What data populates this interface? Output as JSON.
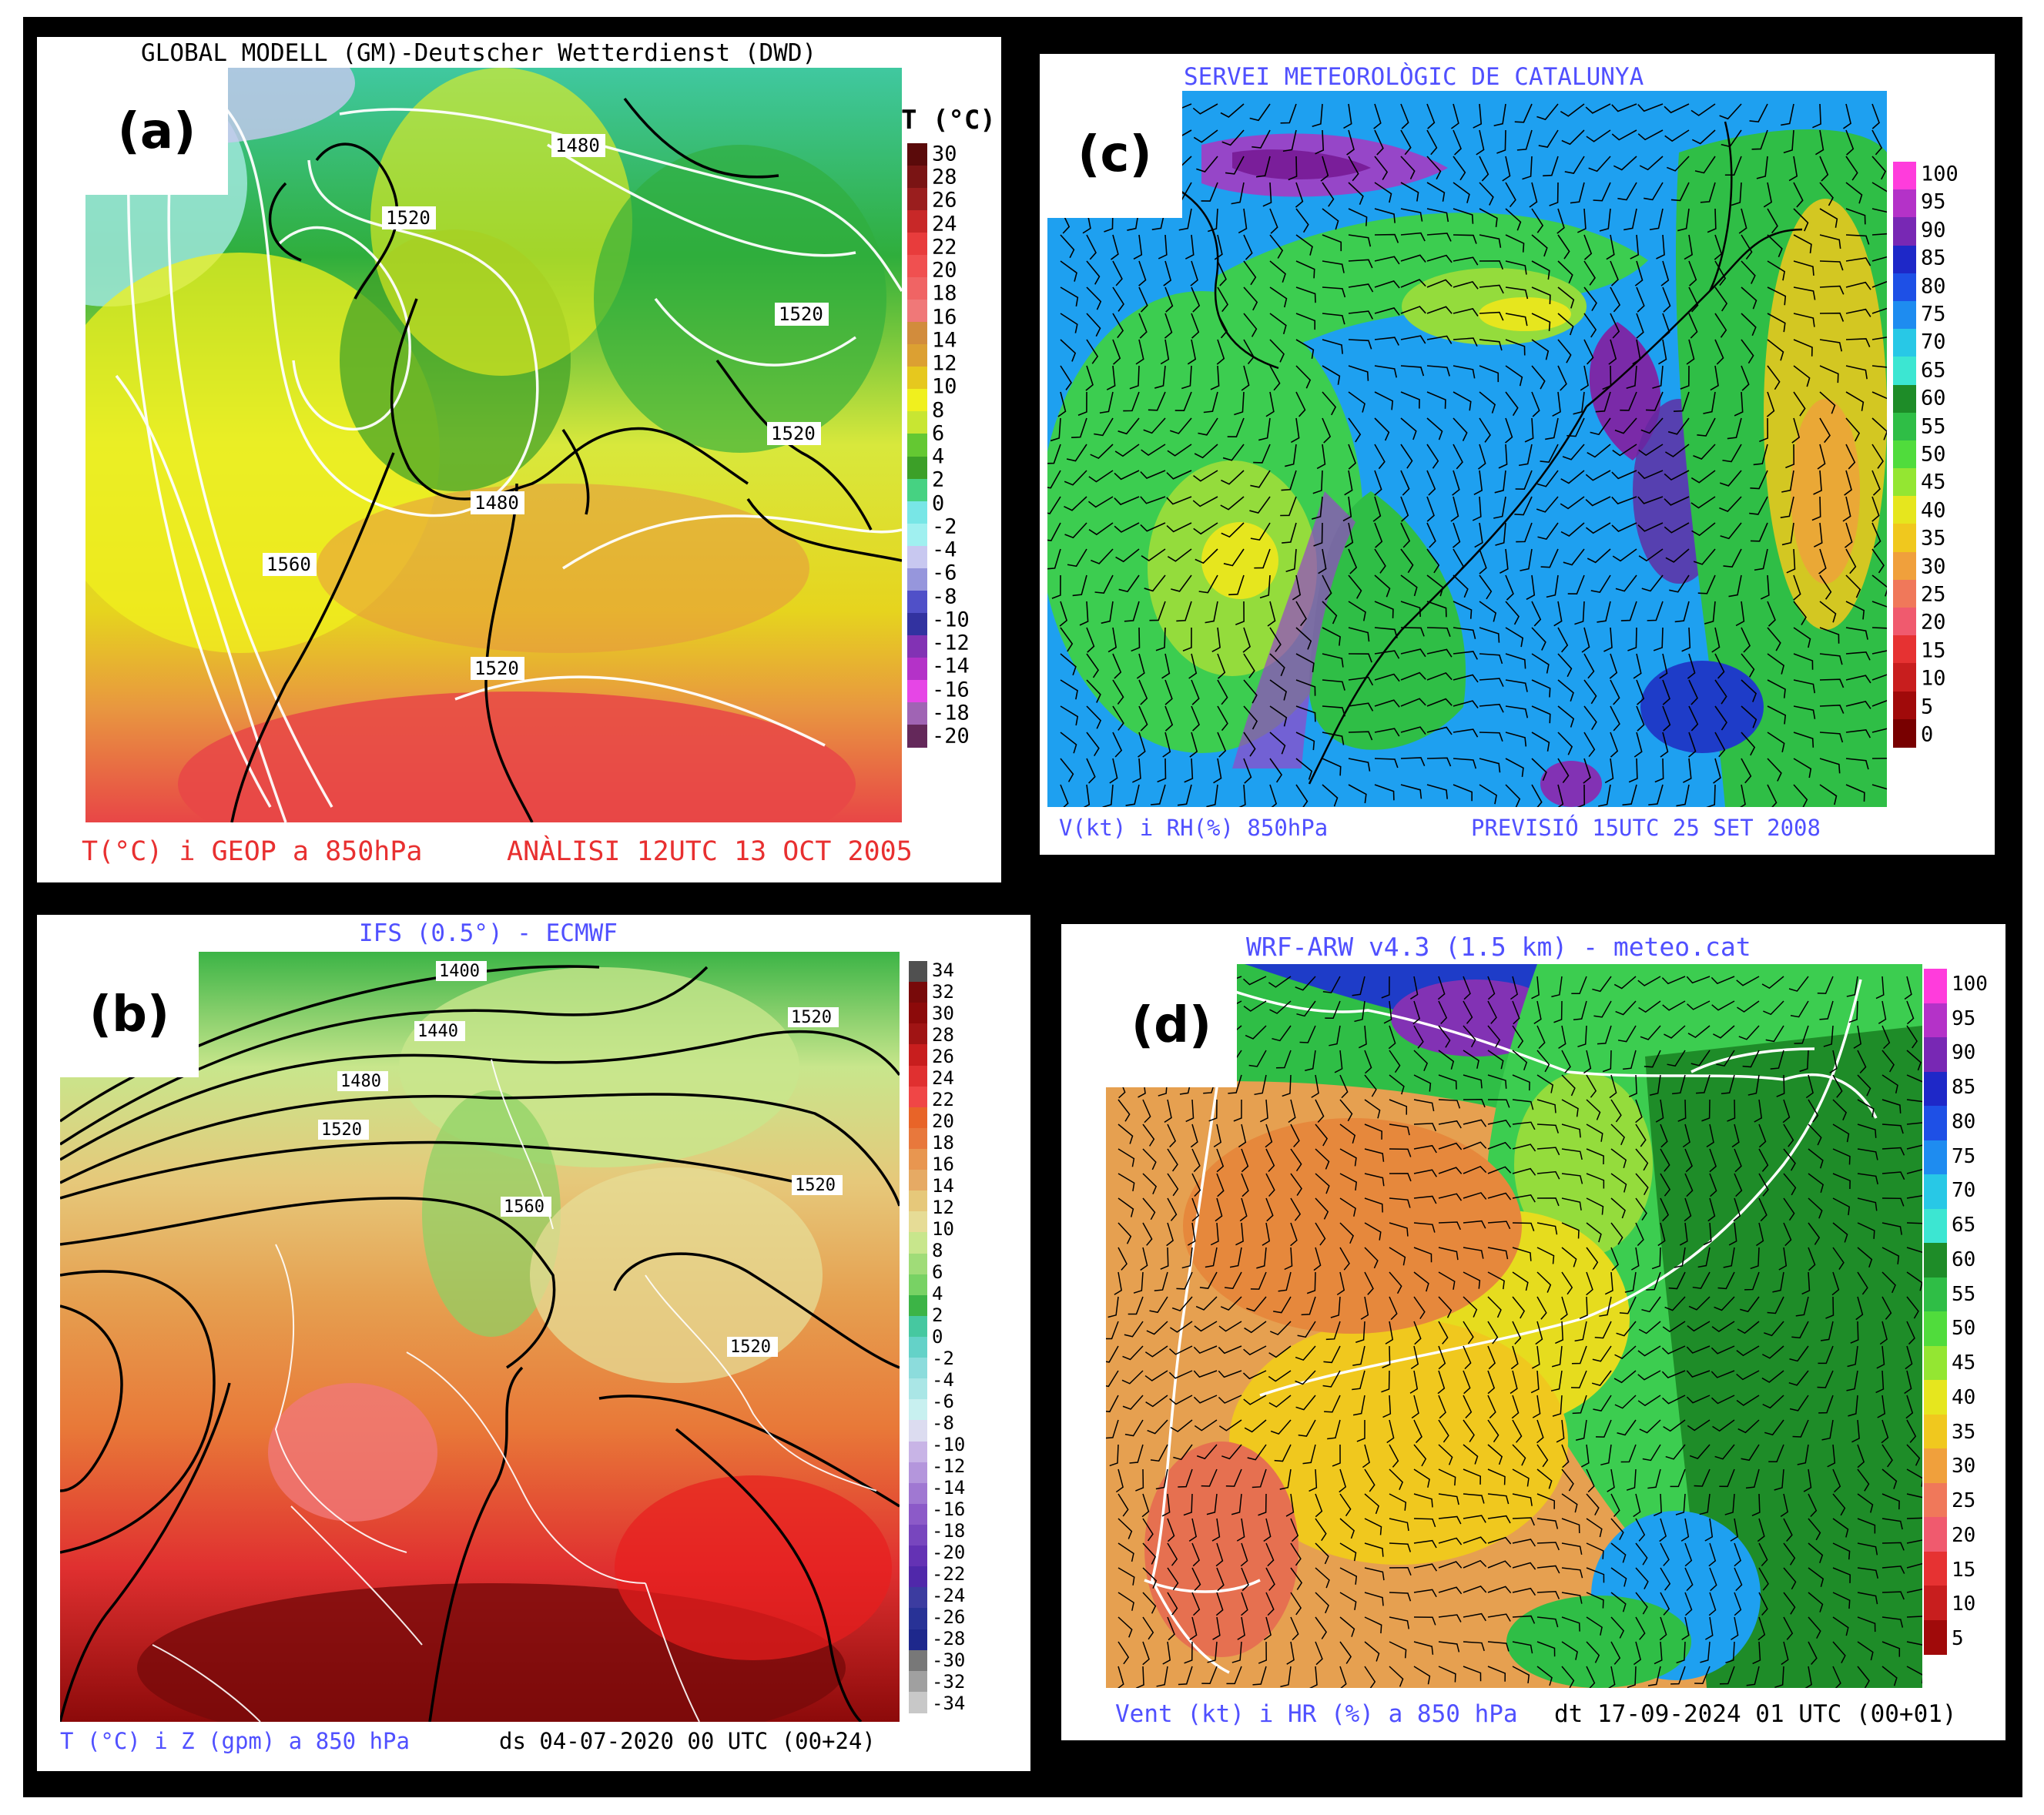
{
  "panels": {
    "a": {
      "label": "(a)",
      "title": "GLOBAL MODELL (GM)-Deutscher Wetterdienst (DWD)",
      "footer_left": "T(°C) i GEOP a 850hPa",
      "footer_right": "ANÀLISI 12UTC 13 OCT 2005",
      "colorbar_title": "T (°C)",
      "colorbar_ticks": [
        "30",
        "28",
        "26",
        "24",
        "22",
        "20",
        "18",
        "16",
        "14",
        "12",
        "10",
        "8",
        "6",
        "4",
        "2",
        "0",
        "-2",
        "-4",
        "-6",
        "-8",
        "-10",
        "-12",
        "-14",
        "-16",
        "-18",
        "-20"
      ],
      "colorbar_colors": [
        "#5a0a0a",
        "#7a1414",
        "#9a1e1e",
        "#c82828",
        "#e83c3c",
        "#f05050",
        "#f06464",
        "#f07878",
        "#d28c3c",
        "#dca032",
        "#e6c81e",
        "#f0f01e",
        "#c8e632",
        "#64c832",
        "#3ca028",
        "#46d282",
        "#78e6e6",
        "#a0f0f0",
        "#c8c8f0",
        "#9696dc",
        "#5050c8",
        "#3232a0",
        "#8232b4",
        "#b432c8",
        "#e646e6",
        "#a064b4",
        "#64285a"
      ],
      "contour_labels": [
        "1480",
        "1520",
        "1520",
        "1520",
        "1480",
        "1560",
        "1520"
      ]
    },
    "b": {
      "label": "(b)",
      "title": "IFS (0.5°) - ECMWF",
      "footer_left": "T (°C) i Z (gpm) a 850 hPa",
      "footer_right": "ds 04-07-2020 00 UTC (00+24)",
      "colorbar_ticks": [
        "34",
        "32",
        "30",
        "28",
        "26",
        "24",
        "22",
        "20",
        "18",
        "16",
        "14",
        "12",
        "10",
        "8",
        "6",
        "4",
        "2",
        "0",
        "-2",
        "-4",
        "-6",
        "-8",
        "-10",
        "-12",
        "-14",
        "-16",
        "-18",
        "-20",
        "-22",
        "-24",
        "-26",
        "-28",
        "-30",
        "-32",
        "-34"
      ],
      "contour_labels": [
        "1400",
        "1440",
        "1480",
        "1520",
        "1520",
        "1560",
        "1520",
        "1520"
      ]
    },
    "c": {
      "label": "(c)",
      "title": "SERVEI METEOROLÒGIC DE CATALUNYA",
      "footer_left": "V(kt) i RH(%) 850hPa",
      "footer_right": "PREVISIÓ 15UTC 25 SET 2008",
      "colorbar_ticks": [
        "100",
        "95",
        "90",
        "85",
        "80",
        "75",
        "70",
        "65",
        "60",
        "55",
        "50",
        "45",
        "40",
        "35",
        "30",
        "25",
        "20",
        "15",
        "10",
        "5",
        "0"
      ]
    },
    "d": {
      "label": "(d)",
      "title": "WRF-ARW v4.3 (1.5 km) - meteo.cat",
      "footer_left": "Vent (kt) i HR (%) a 850 hPa",
      "footer_right": "dt 17-09-2024 01 UTC (00+01)",
      "colorbar_ticks": [
        "100",
        "95",
        "90",
        "85",
        "80",
        "75",
        "70",
        "65",
        "60",
        "55",
        "50",
        "45",
        "40",
        "35",
        "30",
        "25",
        "20",
        "15",
        "10",
        "5"
      ]
    }
  },
  "colors": {
    "title_blue": "#5050ff",
    "footer_red": "#e83030",
    "title_black": "#000000"
  }
}
